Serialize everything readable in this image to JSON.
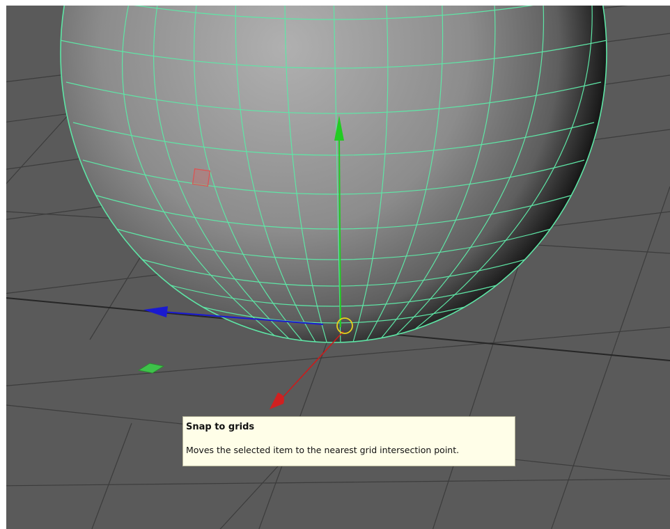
{
  "viewport": {
    "background_color": "#5a5a5a",
    "grid_color": "#3c3c3c",
    "grid_major_color": "#242424",
    "wireframe_color": "#55e0a0",
    "manipulator": {
      "y_axis_color": "#22cc22",
      "x_axis_color": "#1a1acc",
      "z_axis_color": "#cc1a1a",
      "pivot_color": "#e8d21a"
    }
  },
  "tooltip": {
    "title": "Snap to grids",
    "description": "Moves the selected item to the nearest grid intersection point."
  }
}
